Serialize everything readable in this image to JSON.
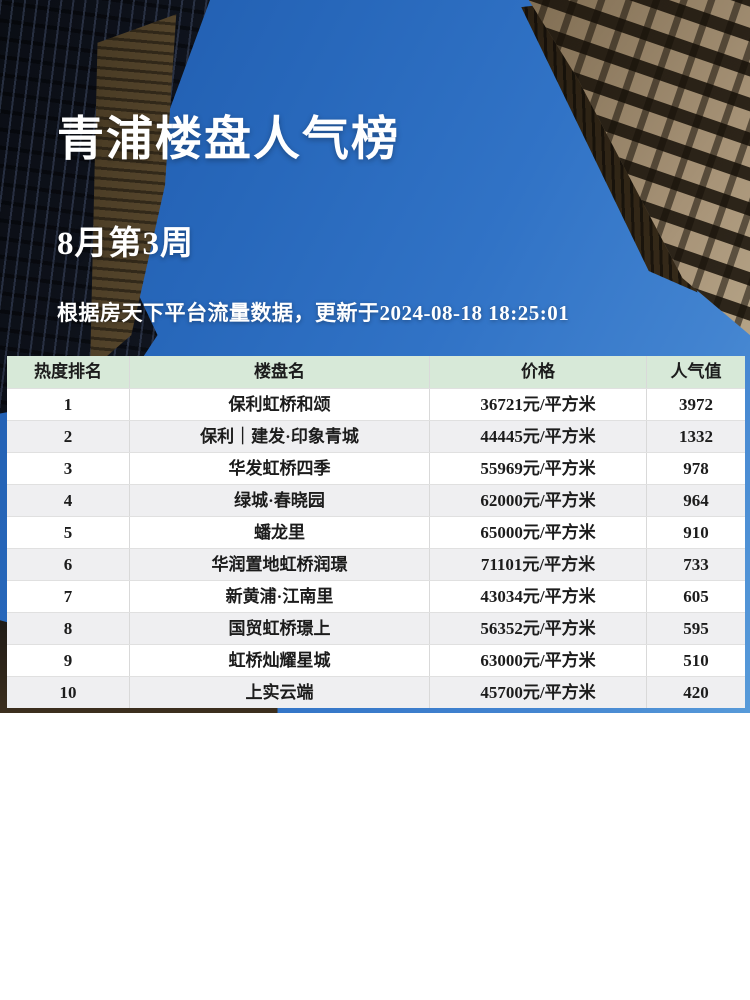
{
  "hero": {
    "title": "青浦楼盘人气榜",
    "subtitle": "8月第3周",
    "meta": "根据房天下平台流量数据，更新于2024-08-18 18:25:01"
  },
  "table": {
    "headers": [
      "热度排名",
      "楼盘名",
      "价格",
      "人气值"
    ],
    "row_keys": [
      "rank",
      "name",
      "price",
      "popularity"
    ],
    "rows": [
      {
        "rank": "1",
        "name": "保利虹桥和颂",
        "price": "36721元/平方米",
        "popularity": "3972"
      },
      {
        "rank": "2",
        "name": "保利｜建发·印象青城",
        "price": "44445元/平方米",
        "popularity": "1332"
      },
      {
        "rank": "3",
        "name": "华发虹桥四季",
        "price": "55969元/平方米",
        "popularity": "978"
      },
      {
        "rank": "4",
        "name": "绿城·春晓园",
        "price": "62000元/平方米",
        "popularity": "964"
      },
      {
        "rank": "5",
        "name": "蟠龙里",
        "price": "65000元/平方米",
        "popularity": "910"
      },
      {
        "rank": "6",
        "name": "华润置地虹桥润璟",
        "price": "71101元/平方米",
        "popularity": "733"
      },
      {
        "rank": "7",
        "name": "新黄浦·江南里",
        "price": "43034元/平方米",
        "popularity": "605"
      },
      {
        "rank": "8",
        "name": "国贸虹桥璟上",
        "price": "56352元/平方米",
        "popularity": "595"
      },
      {
        "rank": "9",
        "name": "虹桥灿耀星城",
        "price": "63000元/平方米",
        "popularity": "510"
      },
      {
        "rank": "10",
        "name": "上实云端",
        "price": "45700元/平方米",
        "popularity": "420"
      }
    ]
  },
  "chart_data": {
    "type": "table",
    "title": "青浦楼盘人气榜 8月第3周",
    "columns": [
      "热度排名",
      "楼盘名",
      "价格",
      "人气值"
    ],
    "rows": [
      [
        1,
        "保利虹桥和颂",
        "36721元/平方米",
        3972
      ],
      [
        2,
        "保利｜建发·印象青城",
        "44445元/平方米",
        1332
      ],
      [
        3,
        "华发虹桥四季",
        "55969元/平方米",
        978
      ],
      [
        4,
        "绿城·春晓园",
        "62000元/平方米",
        964
      ],
      [
        5,
        "蟠龙里",
        "65000元/平方米",
        910
      ],
      [
        6,
        "华润置地虹桥润璟",
        "71101元/平方米",
        733
      ],
      [
        7,
        "新黄浦·江南里",
        "43034元/平方米",
        605
      ],
      [
        8,
        "国贸虹桥璟上",
        "56352元/平方米",
        595
      ],
      [
        9,
        "虹桥灿耀星城",
        "63000元/平方米",
        510
      ],
      [
        10,
        "上实云端",
        "45700元/平方米",
        420
      ]
    ]
  },
  "colors": {
    "sky_blue": "#2b6cc0",
    "header_green": "#d7e9d8",
    "row_alt_gray": "#efeff1",
    "row_white": "#ffffff",
    "separator_gray": "#d9d9d9",
    "text_dark": "#1c1c1c",
    "text_white": "#ffffff"
  }
}
